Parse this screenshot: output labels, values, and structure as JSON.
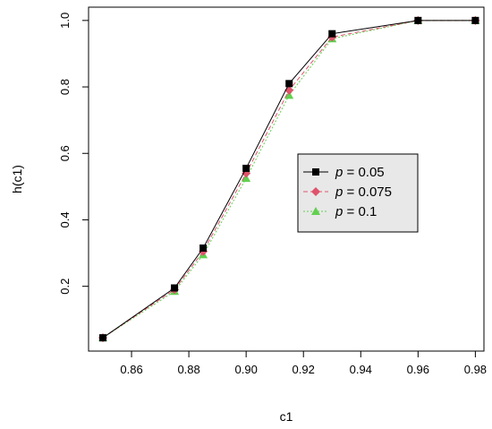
{
  "chart_data": {
    "type": "line",
    "title": "",
    "xlabel": "c1",
    "ylabel": "h(c1)",
    "xlim": [
      0.845,
      0.983
    ],
    "ylim": [
      0.005,
      1.04
    ],
    "xticks": [
      0.86,
      0.88,
      0.9,
      0.92,
      0.94,
      0.96,
      0.98
    ],
    "xtick_labels": [
      "0.86",
      "0.88",
      "0.90",
      "0.92",
      "0.94",
      "0.96",
      "0.98"
    ],
    "yticks": [
      0.2,
      0.4,
      0.6,
      0.8,
      1.0
    ],
    "ytick_labels": [
      "0.2",
      "0.4",
      "0.6",
      "0.8",
      "1.0"
    ],
    "grid": false,
    "legend_position": "center-right",
    "x": [
      0.85,
      0.875,
      0.885,
      0.9,
      0.915,
      0.93,
      0.96,
      0.98
    ],
    "series": [
      {
        "name": "p = 0.05",
        "legend_var": "p",
        "legend_value": "= 0.05",
        "values": [
          0.045,
          0.195,
          0.315,
          0.555,
          0.81,
          0.96,
          1.0,
          1.0
        ],
        "color": "#000000",
        "marker": "square",
        "line_style": "solid"
      },
      {
        "name": "p = 0.075",
        "legend_var": "p",
        "legend_value": "= 0.075",
        "values": [
          0.045,
          0.19,
          0.305,
          0.54,
          0.79,
          0.95,
          1.0,
          1.0
        ],
        "color": "#df536b",
        "marker": "diamond",
        "line_style": "dashed"
      },
      {
        "name": "p = 0.1",
        "legend_var": "p",
        "legend_value": "= 0.1",
        "values": [
          0.045,
          0.185,
          0.295,
          0.525,
          0.775,
          0.945,
          1.0,
          1.0
        ],
        "color": "#61d04f",
        "marker": "triangle",
        "line_style": "dotted"
      }
    ]
  }
}
